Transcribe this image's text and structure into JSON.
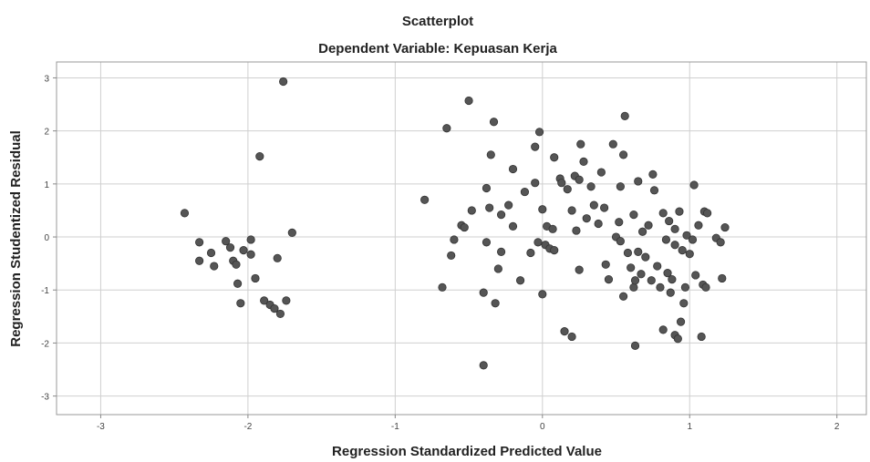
{
  "chart_data": {
    "type": "scatter",
    "title": "Scatterplot",
    "subtitle": "Dependent Variable: Kepuasan Kerja",
    "xlabel": "Regression Standardized Predicted Value",
    "ylabel": "Regression Studentized Residual",
    "xlim": [
      -3.3,
      2.2
    ],
    "ylim": [
      -3.35,
      3.3
    ],
    "xticks": [
      -3,
      -2,
      -1,
      0,
      1,
      2
    ],
    "yticks": [
      -3,
      -2,
      -1,
      0,
      1,
      2,
      3
    ],
    "grid": true,
    "colors": {
      "point_fill": "#555555",
      "point_stroke": "#333333",
      "grid": "#cfcfcf",
      "frame": "#999999"
    },
    "points": [
      [
        -2.43,
        0.45
      ],
      [
        -2.33,
        -0.1
      ],
      [
        -2.33,
        -0.45
      ],
      [
        -2.25,
        -0.3
      ],
      [
        -2.23,
        -0.55
      ],
      [
        -2.15,
        -0.08
      ],
      [
        -2.12,
        -0.2
      ],
      [
        -2.1,
        -0.45
      ],
      [
        -2.08,
        -0.52
      ],
      [
        -2.07,
        -0.88
      ],
      [
        -2.05,
        -1.25
      ],
      [
        -2.03,
        -0.25
      ],
      [
        -1.98,
        -0.33
      ],
      [
        -1.98,
        -0.05
      ],
      [
        -1.95,
        -0.78
      ],
      [
        -1.89,
        -1.2
      ],
      [
        -1.92,
        1.52
      ],
      [
        -1.85,
        -1.28
      ],
      [
        -1.82,
        -1.35
      ],
      [
        -1.8,
        -0.4
      ],
      [
        -1.78,
        -1.45
      ],
      [
        -1.76,
        2.93
      ],
      [
        -1.74,
        -1.2
      ],
      [
        -1.7,
        0.08
      ],
      [
        -0.8,
        0.7
      ],
      [
        -0.68,
        -0.95
      ],
      [
        -0.65,
        2.05
      ],
      [
        -0.62,
        -0.35
      ],
      [
        -0.6,
        -0.05
      ],
      [
        -0.55,
        0.22
      ],
      [
        -0.53,
        0.18
      ],
      [
        -0.5,
        2.57
      ],
      [
        -0.48,
        0.5
      ],
      [
        -0.4,
        -2.42
      ],
      [
        -0.4,
        -1.05
      ],
      [
        -0.38,
        -0.1
      ],
      [
        -0.38,
        0.92
      ],
      [
        -0.36,
        0.55
      ],
      [
        -0.35,
        1.55
      ],
      [
        -0.33,
        2.17
      ],
      [
        -0.32,
        -1.25
      ],
      [
        -0.3,
        -0.6
      ],
      [
        -0.28,
        -0.28
      ],
      [
        -0.28,
        0.42
      ],
      [
        -0.23,
        0.6
      ],
      [
        -0.2,
        1.28
      ],
      [
        -0.2,
        0.2
      ],
      [
        -0.15,
        -0.82
      ],
      [
        -0.12,
        0.85
      ],
      [
        -0.08,
        -0.3
      ],
      [
        -0.05,
        1.02
      ],
      [
        -0.05,
        1.7
      ],
      [
        -0.03,
        -0.1
      ],
      [
        -0.02,
        1.98
      ],
      [
        0.0,
        -1.08
      ],
      [
        0.0,
        0.52
      ],
      [
        0.02,
        -0.15
      ],
      [
        0.03,
        0.2
      ],
      [
        0.05,
        -0.22
      ],
      [
        0.07,
        0.15
      ],
      [
        0.08,
        -0.25
      ],
      [
        0.08,
        1.5
      ],
      [
        0.12,
        1.1
      ],
      [
        0.13,
        1.02
      ],
      [
        0.15,
        -1.78
      ],
      [
        0.17,
        0.9
      ],
      [
        0.2,
        -1.88
      ],
      [
        0.2,
        0.5
      ],
      [
        0.22,
        1.15
      ],
      [
        0.23,
        0.12
      ],
      [
        0.25,
        -0.62
      ],
      [
        0.25,
        1.08
      ],
      [
        0.26,
        1.75
      ],
      [
        0.28,
        1.42
      ],
      [
        0.3,
        0.35
      ],
      [
        0.33,
        0.95
      ],
      [
        0.35,
        0.6
      ],
      [
        0.38,
        0.25
      ],
      [
        0.4,
        1.22
      ],
      [
        0.42,
        0.55
      ],
      [
        0.43,
        -0.52
      ],
      [
        0.45,
        -0.8
      ],
      [
        0.48,
        1.75
      ],
      [
        0.5,
        0.0
      ],
      [
        0.52,
        0.28
      ],
      [
        0.53,
        -0.08
      ],
      [
        0.53,
        0.95
      ],
      [
        0.55,
        -1.12
      ],
      [
        0.55,
        1.55
      ],
      [
        0.56,
        2.28
      ],
      [
        0.58,
        -0.3
      ],
      [
        0.6,
        -0.58
      ],
      [
        0.62,
        0.42
      ],
      [
        0.62,
        -0.95
      ],
      [
        0.63,
        -0.82
      ],
      [
        0.63,
        -2.05
      ],
      [
        0.65,
        1.05
      ],
      [
        0.65,
        -0.28
      ],
      [
        0.67,
        -0.7
      ],
      [
        0.68,
        0.1
      ],
      [
        0.7,
        -0.38
      ],
      [
        0.72,
        0.22
      ],
      [
        0.74,
        -0.82
      ],
      [
        0.75,
        1.18
      ],
      [
        0.76,
        0.88
      ],
      [
        0.78,
        -0.55
      ],
      [
        0.8,
        -0.95
      ],
      [
        0.82,
        0.45
      ],
      [
        0.82,
        -1.75
      ],
      [
        0.84,
        -0.05
      ],
      [
        0.85,
        -0.68
      ],
      [
        0.86,
        0.3
      ],
      [
        0.87,
        -1.05
      ],
      [
        0.88,
        -0.8
      ],
      [
        0.9,
        0.15
      ],
      [
        0.9,
        -1.85
      ],
      [
        0.9,
        -0.15
      ],
      [
        0.92,
        -1.92
      ],
      [
        0.93,
        0.48
      ],
      [
        0.94,
        -1.6
      ],
      [
        0.95,
        -0.25
      ],
      [
        0.96,
        -1.25
      ],
      [
        0.97,
        -0.95
      ],
      [
        0.98,
        0.03
      ],
      [
        1.0,
        -0.32
      ],
      [
        1.02,
        -0.05
      ],
      [
        1.03,
        0.98
      ],
      [
        1.04,
        -0.72
      ],
      [
        1.06,
        0.22
      ],
      [
        1.08,
        -1.88
      ],
      [
        1.09,
        -0.9
      ],
      [
        1.1,
        0.48
      ],
      [
        1.11,
        -0.95
      ],
      [
        1.12,
        0.45
      ],
      [
        1.18,
        -0.02
      ],
      [
        1.21,
        -0.1
      ],
      [
        1.22,
        -0.78
      ],
      [
        1.24,
        0.18
      ]
    ]
  }
}
